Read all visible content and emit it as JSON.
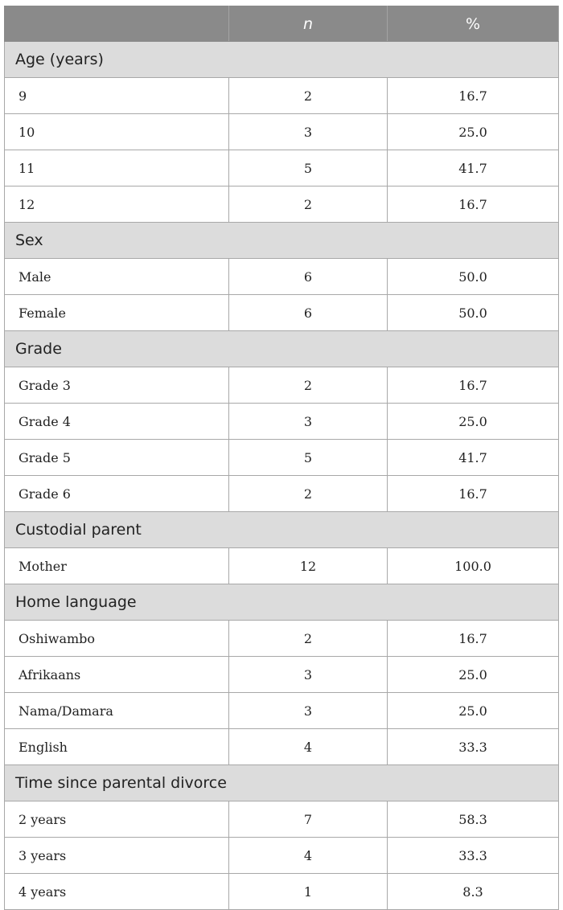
{
  "table": {
    "header": {
      "stub": "",
      "n": "n",
      "percent": "%"
    },
    "groups": [
      {
        "title": "Age (years)",
        "rows": [
          {
            "label": "9",
            "n": "2",
            "percent": "16.7"
          },
          {
            "label": "10",
            "n": "3",
            "percent": "25.0"
          },
          {
            "label": "11",
            "n": "5",
            "percent": "41.7"
          },
          {
            "label": "12",
            "n": "2",
            "percent": "16.7"
          }
        ]
      },
      {
        "title": "Sex",
        "rows": [
          {
            "label": "Male",
            "n": "6",
            "percent": "50.0"
          },
          {
            "label": "Female",
            "n": "6",
            "percent": "50.0"
          }
        ]
      },
      {
        "title": "Grade",
        "rows": [
          {
            "label": "Grade 3",
            "n": "2",
            "percent": "16.7"
          },
          {
            "label": "Grade 4",
            "n": "3",
            "percent": "25.0"
          },
          {
            "label": "Grade 5",
            "n": "5",
            "percent": "41.7"
          },
          {
            "label": "Grade 6",
            "n": "2",
            "percent": "16.7"
          }
        ]
      },
      {
        "title": "Custodial parent",
        "rows": [
          {
            "label": "Mother",
            "n": "12",
            "percent": "100.0"
          }
        ]
      },
      {
        "title": "Home language",
        "rows": [
          {
            "label": "Oshiwambo",
            "n": "2",
            "percent": "16.7"
          },
          {
            "label": "Afrikaans",
            "n": "3",
            "percent": "25.0"
          },
          {
            "label": "Nama/Damara",
            "n": "3",
            "percent": "25.0"
          },
          {
            "label": "English",
            "n": "4",
            "percent": "33.3"
          }
        ]
      },
      {
        "title": "Time since parental divorce",
        "rows": [
          {
            "label": "2 years",
            "n": "7",
            "percent": "58.3"
          },
          {
            "label": "3 years",
            "n": "4",
            "percent": "33.3"
          },
          {
            "label": "4 years",
            "n": "1",
            "percent": "8.3"
          }
        ]
      }
    ]
  }
}
